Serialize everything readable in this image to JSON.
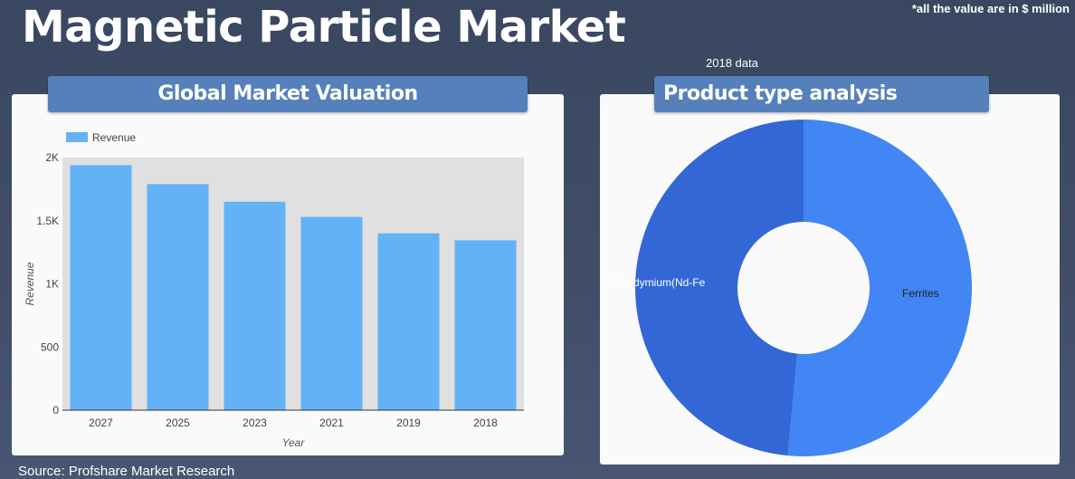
{
  "page": {
    "title": "Magnetic Particle Market",
    "note": "*all the value are in $ million",
    "data_year_label": "2018 data",
    "source": "Source: Profshare Market Research"
  },
  "colors": {
    "background": "#3c4962",
    "header": "#5580bb",
    "bar": "#63b2f6",
    "plot_bg": "#e0e0e0",
    "donut_ferrites": "#4285f4",
    "donut_neodymium": "#3367d6"
  },
  "chart_data": [
    {
      "type": "bar",
      "title": "Global Market Valuation",
      "categories": [
        "2027",
        "2025",
        "2023",
        "2021",
        "2019",
        "2018"
      ],
      "series": [
        {
          "name": "Revenue",
          "values": [
            1940,
            1790,
            1650,
            1530,
            1400,
            1345
          ]
        }
      ],
      "xlabel": "Year",
      "ylabel": "Revenue",
      "ylim": [
        0,
        2000
      ],
      "yticks": [
        0,
        500,
        1000,
        1500,
        2000
      ],
      "ytick_labels": [
        "0",
        "500",
        "1K",
        "1.5K",
        "2K"
      ],
      "legend": "top-left",
      "grid": false
    },
    {
      "type": "pie",
      "title": "Product type analysis",
      "subtitle": "2018 data",
      "donut": true,
      "labels": [
        "Ferrites",
        "Neodymium(Nd-Fe"
      ],
      "values": [
        51.5,
        48.5
      ],
      "colors": [
        "#4285f4",
        "#3367d6"
      ]
    }
  ]
}
